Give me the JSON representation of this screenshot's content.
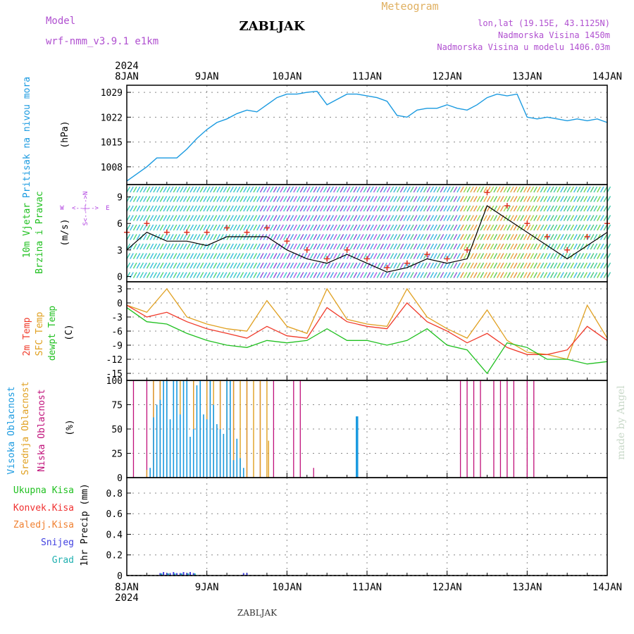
{
  "header": {
    "model_label": "Model",
    "model_name": "wrf-nmm_v3.9.1 e1km",
    "station": "ZABLJAK",
    "meteogram_label": "Meteogram",
    "coords": "lon,lat (19.15E, 43.1125N)",
    "altitude": "Nadmorska Visina 1450m",
    "model_altitude": "Nadmorska Visina u modelu 1406.03m"
  },
  "footer": {
    "station": "ZABLJAK",
    "watermark": "made by Angel"
  },
  "time_axis": {
    "year": "2024",
    "labels": [
      "8JAN",
      "9JAN",
      "10JAN",
      "11JAN",
      "12JAN",
      "13JAN",
      "14JAN"
    ],
    "range_hours": [
      0,
      144
    ]
  },
  "colors": {
    "pressure": "#1a9ae0",
    "wind_speed": "#000000",
    "gust": "#e03020",
    "temp2m": "#f03a2a",
    "sfc_temp": "#e0a020",
    "dewpt": "#20c020",
    "cloud_high": "#1a9ae0",
    "cloud_mid": "#e0a020",
    "cloud_low": "#c0107a",
    "precip_total": "#20c020",
    "precip_conv": "#f03030",
    "precip_frozen": "#f08030",
    "precip_snow": "#4040e0",
    "precip_graupel": "#20b0b0",
    "wind_dir_label": "#b040e0",
    "title_purple": "#b050d0",
    "meteogram_orange": "#e0b060"
  },
  "chart_data": [
    {
      "type": "line",
      "panel": "pressure",
      "ylabel": "Pritisak na nivou mora",
      "unit": "(hPa)",
      "yticks": [
        "1029",
        "1022",
        "1015",
        "1008"
      ],
      "ylim": [
        1003,
        1031
      ],
      "grid": true,
      "series": [
        {
          "x": [
            0,
            3,
            6,
            9,
            12,
            15,
            18,
            21,
            24,
            27,
            30,
            33,
            36,
            39,
            42,
            45,
            48,
            51,
            54,
            57,
            60,
            63,
            66,
            69,
            72,
            75,
            78,
            81,
            84,
            87,
            90,
            93,
            96,
            99,
            102,
            105,
            108,
            111,
            114,
            117,
            120,
            123,
            126,
            129,
            132,
            135,
            138,
            141,
            144
          ],
          "y": [
            1004,
            1006,
            1008,
            1010.5,
            1010.5,
            1010.5,
            1013,
            1016,
            1018.5,
            1020.5,
            1021.5,
            1023,
            1024,
            1023.5,
            1025.5,
            1027.5,
            1028.5,
            1028.5,
            1029,
            1029.3,
            1025.5,
            1027,
            1028.5,
            1028.5,
            1028,
            1027.5,
            1026.5,
            1022.5,
            1022,
            1024,
            1024.5,
            1024.5,
            1025.5,
            1024.5,
            1024,
            1025.5,
            1027.5,
            1028.5,
            1028,
            1028.5,
            1022,
            1021.5,
            1022,
            1021.5,
            1021,
            1021.5,
            1021,
            1021.5,
            1020.5
          ]
        }
      ]
    },
    {
      "type": "line",
      "panel": "wind",
      "ylabel": "10m Vjetar Brzina i Pravac",
      "unit": "(m/s)",
      "direction_legend": [
        "W",
        "<--|-->",
        "E",
        "S",
        "N"
      ],
      "yticks": [
        "9",
        "6",
        "3",
        "0"
      ],
      "ylim": [
        -0.6,
        10.4
      ],
      "grid": false,
      "series": [
        {
          "name": "speed",
          "x": [
            0,
            6,
            12,
            18,
            24,
            30,
            36,
            42,
            48,
            54,
            60,
            66,
            72,
            78,
            84,
            90,
            96,
            102,
            108,
            114,
            120,
            126,
            132,
            138,
            144
          ],
          "y": [
            3,
            5,
            4,
            4,
            3.5,
            4.5,
            4.5,
            4.5,
            3,
            2,
            1.5,
            2.5,
            1.5,
            0.5,
            1,
            2,
            1.5,
            2,
            8,
            6.5,
            5,
            3.5,
            2,
            3.5,
            5
          ]
        },
        {
          "name": "gust",
          "x": [
            0,
            6,
            12,
            18,
            24,
            30,
            36,
            42,
            48,
            54,
            60,
            66,
            72,
            78,
            84,
            90,
            96,
            102,
            108,
            114,
            120,
            126,
            132,
            138,
            144
          ],
          "y": [
            5,
            6,
            5,
            5,
            5,
            5.5,
            5,
            5.5,
            4,
            3,
            2,
            3,
            2,
            1,
            1.5,
            2.5,
            2,
            3,
            9.5,
            8,
            6,
            4.5,
            3,
            4.5,
            6
          ]
        }
      ]
    },
    {
      "type": "line",
      "panel": "temperature",
      "ylabel": [
        "2m Temp",
        "SFC Temp",
        "dewpt Temp"
      ],
      "unit": "(C)",
      "yticks": [
        "3",
        "0",
        "-3",
        "-6",
        "-9",
        "-12",
        "-15"
      ],
      "ylim": [
        -16.5,
        4.5
      ],
      "grid": true,
      "series": [
        {
          "name": "2m Temp",
          "x": [
            0,
            6,
            12,
            18,
            24,
            30,
            36,
            42,
            48,
            54,
            60,
            66,
            72,
            78,
            84,
            90,
            96,
            102,
            108,
            114,
            120,
            126,
            132,
            138,
            144
          ],
          "y": [
            -0.5,
            -3,
            -2,
            -4,
            -5.5,
            -6.5,
            -7.5,
            -5,
            -7,
            -7.5,
            -1,
            -4,
            -5,
            -5.5,
            0,
            -4,
            -6,
            -8.5,
            -6.5,
            -9.5,
            -11,
            -11,
            -10,
            -5,
            -8
          ]
        },
        {
          "name": "SFC Temp",
          "x": [
            0,
            6,
            12,
            18,
            24,
            30,
            36,
            42,
            48,
            54,
            60,
            66,
            72,
            78,
            84,
            90,
            96,
            102,
            108,
            114,
            120,
            126,
            132,
            138,
            144
          ],
          "y": [
            -0.5,
            -2,
            3,
            -3,
            -4.5,
            -5.5,
            -6,
            0.5,
            -5,
            -6.5,
            3,
            -3.5,
            -4.5,
            -5,
            3,
            -3,
            -5.5,
            -7.5,
            -1.5,
            -8,
            -10.5,
            -11,
            -12,
            -0.5,
            -7.5
          ]
        },
        {
          "name": "dewpt Temp",
          "x": [
            0,
            6,
            12,
            18,
            24,
            30,
            36,
            42,
            48,
            54,
            60,
            66,
            72,
            78,
            84,
            90,
            96,
            102,
            108,
            114,
            120,
            126,
            132,
            138,
            144
          ],
          "y": [
            -1,
            -4,
            -4.5,
            -6.5,
            -8,
            -9,
            -9.5,
            -8,
            -8.5,
            -8,
            -5.5,
            -8,
            -8,
            -9,
            -8,
            -5.5,
            -9,
            -10,
            -15,
            -8.5,
            -9.5,
            -12,
            -12,
            -13,
            -12.5
          ]
        }
      ]
    },
    {
      "type": "bar",
      "panel": "clouds",
      "ylabel": [
        "Visoka Oblacnost",
        "Srednja Oblacnost",
        "Niska Oblacnost"
      ],
      "unit": "(%)",
      "yticks": [
        "100",
        "75",
        "50",
        "25",
        "0"
      ],
      "ylim": [
        0,
        100
      ],
      "grid": true,
      "series": [
        {
          "name": "Visoka Oblacnost",
          "x": [
            7,
            8,
            9,
            10,
            11,
            12,
            13,
            14,
            15,
            16,
            17,
            18,
            19,
            20,
            21,
            22,
            23,
            24,
            25,
            26,
            27,
            28,
            29,
            30,
            31,
            32,
            33,
            34,
            35,
            36,
            37,
            69
          ],
          "values": [
            10,
            62,
            75,
            80,
            100,
            100,
            60,
            100,
            100,
            65,
            100,
            100,
            42,
            50,
            95,
            100,
            65,
            60,
            100,
            75,
            55,
            50,
            45,
            100,
            100,
            18,
            40,
            20,
            10,
            0,
            0,
            63
          ]
        },
        {
          "name": "Srednja Oblacnost",
          "x": [
            6,
            8,
            10,
            12,
            14,
            16,
            18,
            20,
            22,
            24,
            26,
            28,
            30,
            32,
            34,
            36,
            38,
            40,
            42,
            42.5
          ],
          "values": [
            8,
            100,
            100,
            100,
            100,
            100,
            100,
            100,
            100,
            100,
            100,
            100,
            100,
            100,
            100,
            100,
            100,
            100,
            100,
            38
          ]
        },
        {
          "name": "Niska Oblacnost",
          "x": [
            2,
            6,
            8,
            10,
            12,
            20,
            22,
            24,
            28,
            32,
            36,
            40,
            44,
            50,
            52,
            56,
            100,
            102,
            104,
            106,
            110,
            112,
            114,
            116,
            120,
            122
          ],
          "values": [
            100,
            100,
            100,
            100,
            100,
            100,
            100,
            100,
            100,
            100,
            100,
            100,
            100,
            100,
            100,
            10,
            100,
            100,
            100,
            100,
            100,
            100,
            100,
            100,
            100,
            100
          ]
        }
      ]
    },
    {
      "type": "bar",
      "panel": "precip",
      "ylabel": "1hr Precip (mm)",
      "legend": [
        "Ukupna Kisa",
        "Konvek.Kisa",
        "Zaledj.Kisa",
        "Snijeg",
        "Grad"
      ],
      "yticks": [
        "0.8",
        "0.6",
        "0.4",
        "0.2",
        "0"
      ],
      "ylim": [
        0,
        0.95
      ],
      "grid": true,
      "series": [
        {
          "name": "Snijeg",
          "x": [
            10,
            11,
            12,
            13,
            14,
            15,
            16,
            17,
            18,
            19,
            20,
            35,
            36
          ],
          "values": [
            0.01,
            0.02,
            0.01,
            0.01,
            0.02,
            0.01,
            0.01,
            0.02,
            0.01,
            0.02,
            0.01,
            0.01,
            0.01
          ]
        },
        {
          "name": "Grad",
          "x": [
            10,
            12,
            14,
            16,
            18,
            20
          ],
          "values": [
            0.005,
            0.005,
            0.005,
            0.005,
            0.005,
            0.005
          ]
        }
      ]
    }
  ]
}
